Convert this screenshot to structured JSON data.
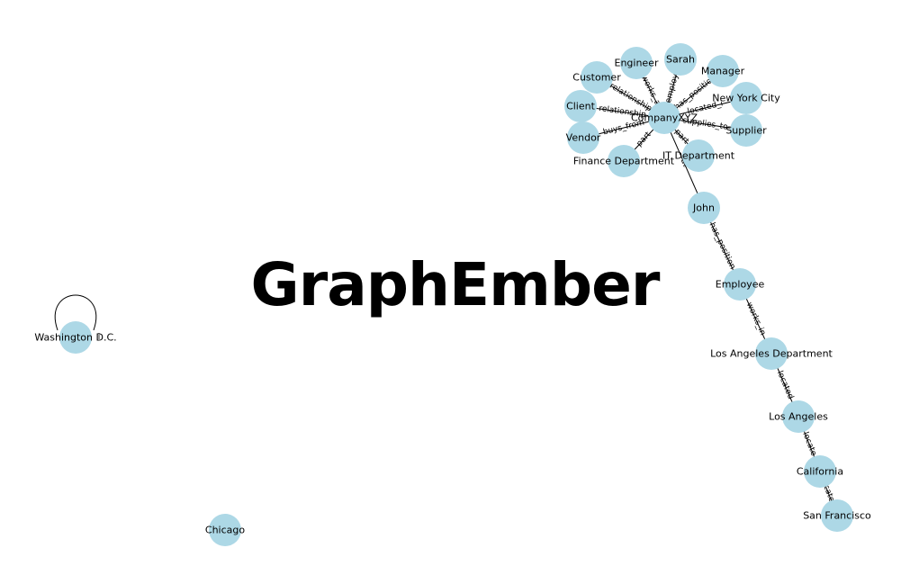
{
  "brand": {
    "title": "GraphEmber"
  },
  "nodes": [
    {
      "id": "companyxyz",
      "label": "CompanyXYZ"
    },
    {
      "id": "engineer",
      "label": "Engineer"
    },
    {
      "id": "sarah",
      "label": "Sarah"
    },
    {
      "id": "manager",
      "label": "Manager"
    },
    {
      "id": "customer",
      "label": "Customer"
    },
    {
      "id": "new-york-city",
      "label": "New York City"
    },
    {
      "id": "client",
      "label": "Client"
    },
    {
      "id": "supplier",
      "label": "Supplier"
    },
    {
      "id": "vendor",
      "label": "Vendor"
    },
    {
      "id": "it-department",
      "label": "IT Department"
    },
    {
      "id": "finance-department",
      "label": "Finance Department"
    },
    {
      "id": "john",
      "label": "John"
    },
    {
      "id": "employee",
      "label": "Employee"
    },
    {
      "id": "los-angeles-department",
      "label": "Los Angeles Department"
    },
    {
      "id": "los-angeles",
      "label": "Los Angeles"
    },
    {
      "id": "california",
      "label": "California"
    },
    {
      "id": "san-francisco",
      "label": "San Francisco"
    },
    {
      "id": "washington-dc",
      "label": "Washington D.C."
    },
    {
      "id": "chicago",
      "label": "Chicago"
    }
  ],
  "edges": [
    {
      "source": "companyxyz",
      "target": "engineer",
      "label": "works_a"
    },
    {
      "source": "companyxyz",
      "target": "sarah",
      "label": "employ"
    },
    {
      "source": "companyxyz",
      "target": "manager",
      "label": "has_positio"
    },
    {
      "source": "companyxyz",
      "target": "customer",
      "label": "relationship"
    },
    {
      "source": "companyxyz",
      "target": "new-york-city",
      "label": "located_i"
    },
    {
      "source": "companyxyz",
      "target": "client",
      "label": "relationship"
    },
    {
      "source": "companyxyz",
      "target": "supplier",
      "label": "supplies_to"
    },
    {
      "source": "companyxyz",
      "target": "vendor",
      "label": "buys_from"
    },
    {
      "source": "companyxyz",
      "target": "finance-department",
      "label": "part"
    },
    {
      "source": "companyxyz",
      "target": "it-department",
      "label": "part"
    },
    {
      "source": "companyxyz",
      "target": "john",
      "label": "at"
    },
    {
      "source": "john",
      "target": "employee",
      "label": "has_position"
    },
    {
      "source": "employee",
      "target": "los-angeles-department",
      "label": "works_in"
    },
    {
      "source": "los-angeles-department",
      "target": "los-angeles",
      "label": "located"
    },
    {
      "source": "los-angeles",
      "target": "california",
      "label": "locate"
    },
    {
      "source": "california",
      "target": "san-francisco",
      "label": "cate"
    },
    {
      "source": "washington-dc",
      "target": "washington-dc",
      "label": "i"
    }
  ]
}
